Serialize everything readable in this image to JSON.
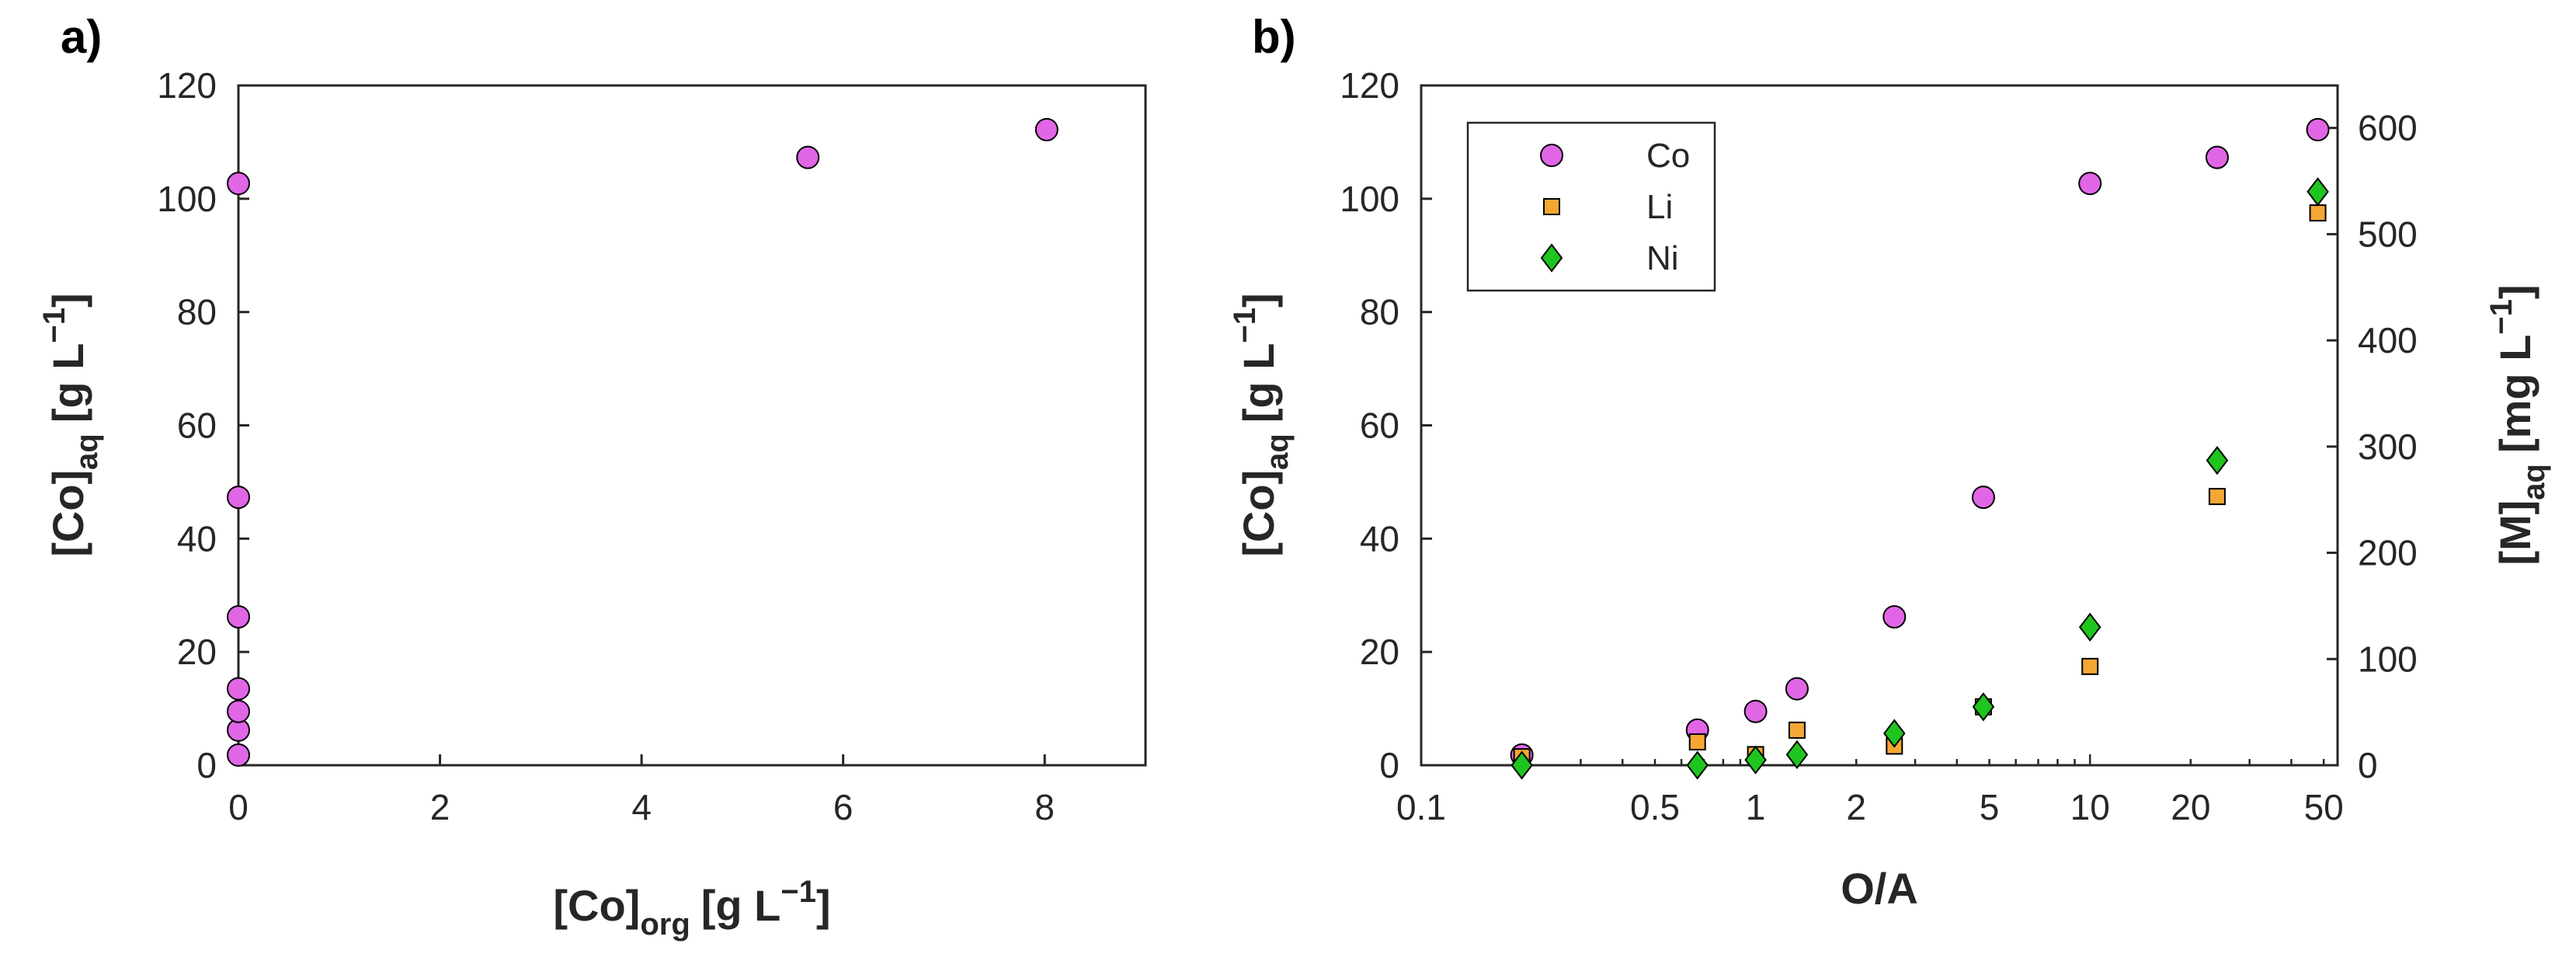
{
  "chart_data": [
    {
      "panel": "a)",
      "type": "scatter",
      "xlabel": {
        "main": "[Co]",
        "sub": "org",
        "unit": "[g L",
        "exp": "−1",
        "close": "]"
      },
      "ylabel": {
        "main": "[Co]",
        "sub": "aq",
        "unit": "[g L",
        "exp": "−1",
        "close": "]"
      },
      "xlim": [
        0,
        9
      ],
      "ylim": [
        0,
        120
      ],
      "xticks": [
        0,
        2,
        4,
        6,
        8
      ],
      "yticks": [
        0,
        20,
        40,
        60,
        80,
        100,
        120
      ],
      "marker_color": "#e066e6",
      "points": [
        {
          "x": 0,
          "y": 1.8
        },
        {
          "x": 0,
          "y": 6.2
        },
        {
          "x": 0,
          "y": 9.5
        },
        {
          "x": 0,
          "y": 13.5
        },
        {
          "x": 0,
          "y": 26.2
        },
        {
          "x": 0,
          "y": 47.3
        },
        {
          "x": 0,
          "y": 102.7
        },
        {
          "x": 5.65,
          "y": 107.3
        },
        {
          "x": 8.02,
          "y": 112.2
        }
      ]
    },
    {
      "panel": "b)",
      "type": "scatter",
      "xscale": "log",
      "xlabel": "O/A",
      "ylabel": {
        "main": "[Co]",
        "sub": "aq",
        "unit": "[g L",
        "exp": "−1",
        "close": "]"
      },
      "y2label": {
        "main": "[M]",
        "sub": "aq",
        "unit": "[mg L",
        "exp": "−1",
        "close": "]"
      },
      "xlim": [
        0.1,
        55
      ],
      "ylim": [
        0,
        120
      ],
      "y2lim": [
        0,
        640
      ],
      "xticks": [
        {
          "v": 0.1,
          "label": "0.1"
        },
        {
          "v": 0.5,
          "label": "0.5"
        },
        {
          "v": 1,
          "label": "1"
        },
        {
          "v": 2,
          "label": "2"
        },
        {
          "v": 5,
          "label": "5"
        },
        {
          "v": 10,
          "label": "10"
        },
        {
          "v": 20,
          "label": "20"
        },
        {
          "v": 50,
          "label": "50"
        }
      ],
      "yticks": [
        0,
        20,
        40,
        60,
        80,
        100,
        120
      ],
      "y2ticks": [
        0,
        100,
        200,
        300,
        400,
        500,
        600
      ],
      "legend_position": "top-left",
      "series": [
        {
          "name": "Co",
          "axis": "left",
          "marker": "circle",
          "color": "#e066e6",
          "x": [
            0.2,
            0.67,
            1,
            1.33,
            2.6,
            4.8,
            10,
            24,
            48
          ],
          "y": [
            1.8,
            6.2,
            9.5,
            13.5,
            26.2,
            47.3,
            102.7,
            107.3,
            112.2
          ]
        },
        {
          "name": "Li",
          "axis": "right",
          "marker": "square",
          "color": "#f5a733",
          "x": [
            0.2,
            0.67,
            1,
            1.33,
            2.6,
            4.8,
            10,
            24,
            48
          ],
          "y": [
            8,
            22,
            10,
            33,
            18,
            55,
            93,
            253,
            520
          ]
        },
        {
          "name": "Ni",
          "axis": "right",
          "marker": "diamond",
          "color": "#1fc41f",
          "x": [
            0.2,
            0.67,
            1,
            1.33,
            2.6,
            4.8,
            10,
            24,
            48
          ],
          "y": [
            0,
            0,
            5,
            10,
            30,
            55,
            130,
            287,
            540
          ]
        }
      ]
    }
  ]
}
